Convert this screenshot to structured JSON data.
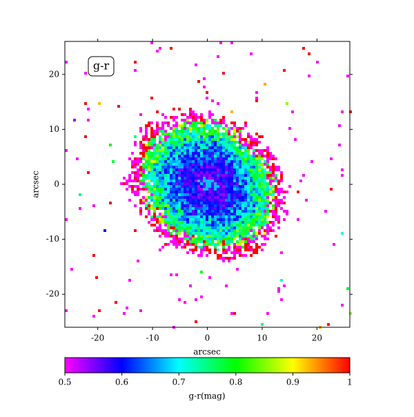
{
  "chart_data": {
    "type": "image",
    "annotation": "g-r",
    "xlabel": "arcsec",
    "ylabel": "arcsec",
    "xlim": [
      -26,
      26
    ],
    "ylim": [
      -26,
      26
    ],
    "xticks": [
      -20,
      -10,
      0,
      10,
      20
    ],
    "yticks": [
      -20,
      -10,
      0,
      10,
      20
    ],
    "colorbar": {
      "label": "g-r(mag)",
      "lim": [
        0.5,
        1.0
      ],
      "ticks": [
        0.5,
        0.6,
        0.7,
        0.8,
        0.9,
        1.0
      ],
      "colormap": [
        "#ff00ff",
        "#0000ff",
        "#00ffff",
        "#00ff00",
        "#ffff00",
        "#ff0000"
      ]
    }
  }
}
